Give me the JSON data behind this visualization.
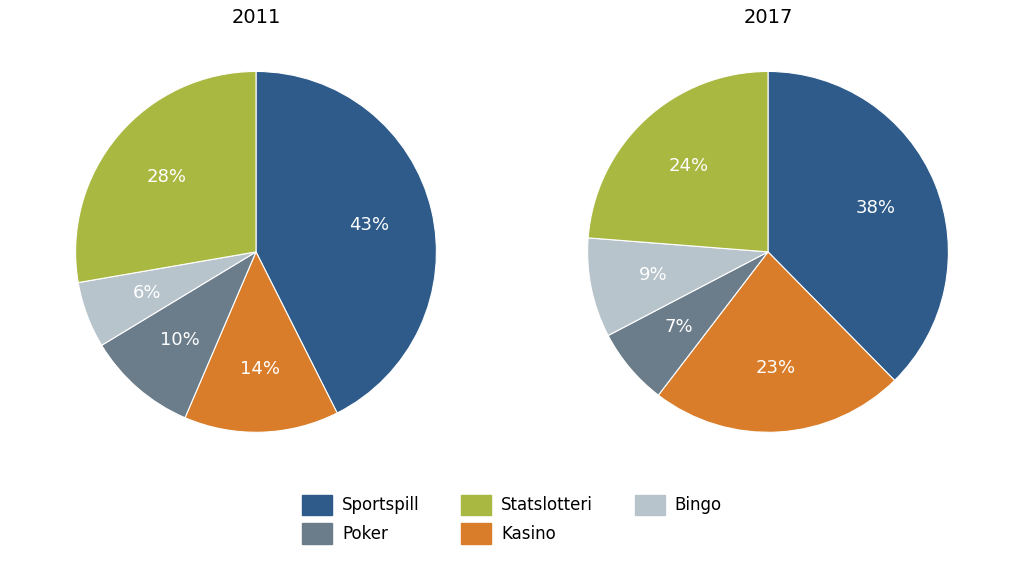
{
  "title_2011": "2011",
  "title_2017": "2017",
  "labels": [
    "Sportspill",
    "Kasino",
    "Poker",
    "Bingo",
    "Statslotteri"
  ],
  "values_2011": [
    43,
    14,
    10,
    6,
    28
  ],
  "values_2017": [
    38,
    23,
    7,
    9,
    24
  ],
  "colors": [
    "#2E5B8A",
    "#D97D2A",
    "#6B7C8A",
    "#B8C4CC",
    "#A9B840"
  ],
  "legend_row1_labels": [
    "Sportspill",
    "Poker",
    "Statslotteri"
  ],
  "legend_row1_colors": [
    "#2E5B8A",
    "#6B7C8A",
    "#A9B840"
  ],
  "legend_row2_labels": [
    "Kasino",
    "Bingo"
  ],
  "legend_row2_colors": [
    "#D97D2A",
    "#B8C4CC"
  ],
  "background_color": "#ffffff",
  "text_color": "#ffffff",
  "title_fontsize": 14,
  "label_fontsize": 13,
  "legend_fontsize": 12
}
